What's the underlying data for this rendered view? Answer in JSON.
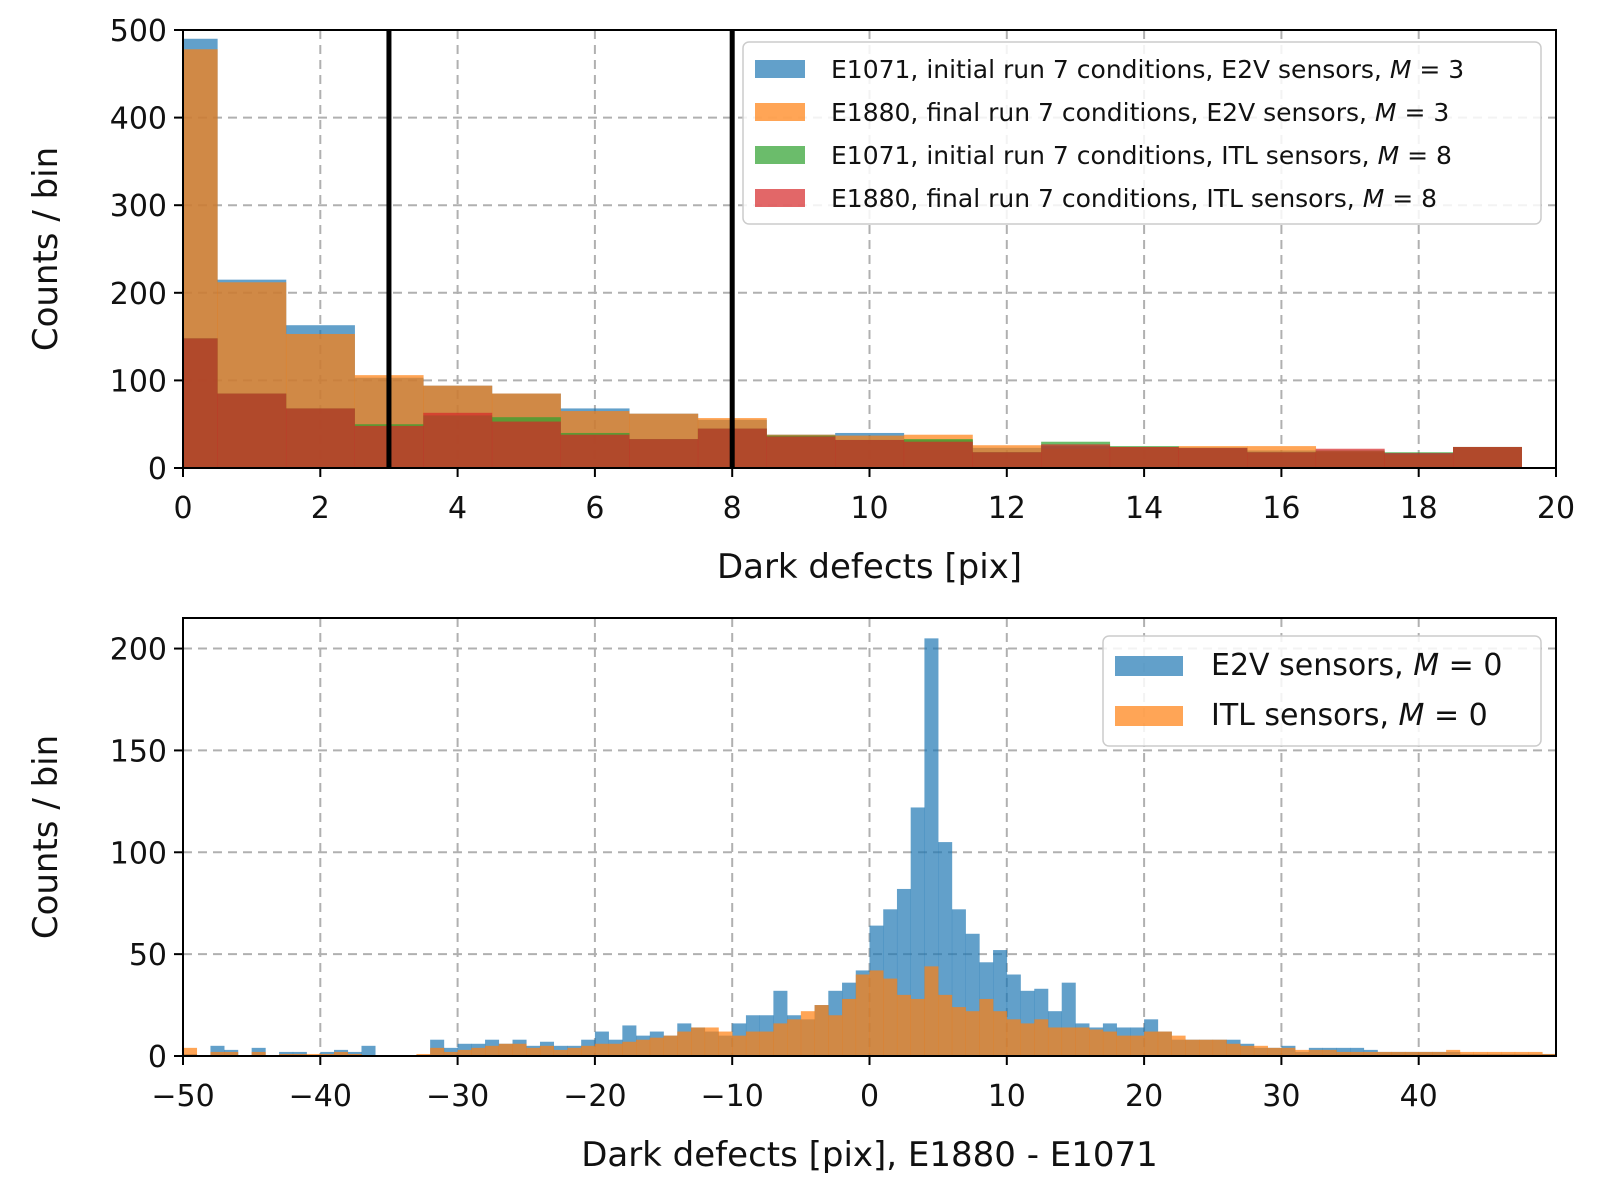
{
  "chart_data": [
    {
      "type": "histogram",
      "xlabel": "Dark defects [pix]",
      "ylabel": "Counts / bin",
      "xlim": [
        0,
        20
      ],
      "ylim": [
        0,
        500
      ],
      "xticks": [
        "0",
        "2",
        "4",
        "6",
        "8",
        "10",
        "12",
        "14",
        "16",
        "18",
        "20"
      ],
      "yticks": [
        "0",
        "100",
        "200",
        "300",
        "400",
        "500"
      ],
      "xtick_values": [
        0,
        2,
        4,
        6,
        8,
        10,
        12,
        14,
        16,
        18,
        20
      ],
      "ytick_values": [
        0,
        100,
        200,
        300,
        400,
        500
      ],
      "grid": true,
      "legend_position": "top-right",
      "bin_width": 1,
      "bin_centers": [
        0,
        1,
        2,
        3,
        4,
        5,
        6,
        7,
        8,
        9,
        10,
        11,
        12,
        13,
        14,
        15,
        16,
        17,
        18,
        19
      ],
      "vertical_lines": [
        3,
        8
      ],
      "series": [
        {
          "name": "E1071, initial run 7 conditions, E2V sensors, $M = 3$",
          "label_main": "E1071, initial run 7 conditions, E2V sensors, ",
          "label_math": "M",
          "label_eq": " = 3",
          "color": "#1f77b4",
          "values": [
            490,
            215,
            163,
            103,
            94,
            85,
            68,
            62,
            55,
            38,
            40,
            32,
            23,
            25,
            23,
            22,
            20,
            18,
            17,
            24
          ]
        },
        {
          "name": "E1880, final run 7 conditions, E2V sensors, $M = 3$",
          "label_main": "E1880, final run 7 conditions, E2V sensors, ",
          "label_math": "M",
          "label_eq": " = 3",
          "color": "#ff7f0e",
          "values": [
            478,
            212,
            153,
            106,
            94,
            85,
            65,
            62,
            57,
            38,
            37,
            38,
            26,
            22,
            24,
            25,
            25,
            19,
            15,
            24
          ]
        },
        {
          "name": "E1071, initial run 7 conditions, ITL sensors, $M = 8$",
          "label_main": "E1071, initial run 7 conditions, ITL sensors, ",
          "label_math": "M",
          "label_eq": " = 8",
          "color": "#2ca02c",
          "values": [
            148,
            85,
            68,
            50,
            60,
            58,
            40,
            33,
            45,
            37,
            32,
            33,
            18,
            30,
            25,
            23,
            18,
            20,
            18,
            24
          ]
        },
        {
          "name": "E1880, final run 7 conditions, ITL sensors, $M = 8$",
          "label_main": "E1880, final run 7 conditions, ITL sensors, ",
          "label_math": "M",
          "label_eq": " = 8",
          "color": "#d62728",
          "values": [
            148,
            85,
            68,
            48,
            63,
            53,
            38,
            33,
            45,
            36,
            32,
            30,
            18,
            27,
            24,
            23,
            18,
            22,
            17,
            24
          ]
        }
      ]
    },
    {
      "type": "histogram",
      "xlabel": "Dark defects [pix], E1880 - E1071",
      "ylabel": "Counts / bin",
      "xlim": [
        -50,
        50
      ],
      "ylim": [
        0,
        215
      ],
      "xticks": [
        "−50",
        "−40",
        "−30",
        "−20",
        "−10",
        "0",
        "10",
        "20",
        "30",
        "40"
      ],
      "yticks": [
        "0",
        "50",
        "100",
        "150",
        "200"
      ],
      "xtick_values": [
        -50,
        -40,
        -30,
        -20,
        -10,
        0,
        10,
        20,
        30,
        40
      ],
      "ytick_values": [
        0,
        50,
        100,
        150,
        200
      ],
      "grid": true,
      "legend_position": "top-right",
      "bin_width": 1,
      "bin_start": -50,
      "series": [
        {
          "name": "E2V sensors, $M = 0$",
          "label_main": "E2V sensors, ",
          "label_math": "M",
          "label_eq": " = 0",
          "color": "#1f77b4",
          "values": [
            1,
            0,
            5,
            3,
            0,
            4,
            0,
            2,
            2,
            0,
            2,
            3,
            2,
            5,
            0,
            0,
            0,
            0,
            8,
            4,
            6,
            6,
            8,
            6,
            8,
            5,
            7,
            5,
            5,
            8,
            12,
            8,
            15,
            10,
            12,
            10,
            16,
            14,
            12,
            10,
            16,
            20,
            20,
            32,
            20,
            18,
            25,
            32,
            36,
            42,
            64,
            72,
            82,
            122,
            205,
            105,
            72,
            60,
            46,
            52,
            40,
            32,
            33,
            22,
            36,
            16,
            14,
            16,
            14,
            14,
            18,
            12,
            8,
            8,
            8,
            8,
            8,
            6,
            4,
            4,
            5,
            2,
            4,
            4,
            4,
            4,
            3,
            2,
            2,
            2,
            2,
            2,
            2,
            1,
            1,
            1,
            1,
            1,
            1,
            1
          ]
        },
        {
          "name": "ITL sensors, $M = 0$",
          "label_main": "ITL sensors, ",
          "label_math": "M",
          "label_eq": " = 0",
          "color": "#ff7f0e",
          "values": [
            4,
            0,
            2,
            2,
            0,
            2,
            0,
            1,
            1,
            1,
            1,
            2,
            1,
            0,
            0,
            0,
            0,
            1,
            4,
            2,
            3,
            4,
            5,
            6,
            6,
            4,
            5,
            3,
            4,
            5,
            6,
            6,
            7,
            8,
            9,
            10,
            12,
            14,
            14,
            12,
            10,
            12,
            12,
            16,
            18,
            22,
            25,
            20,
            28,
            40,
            42,
            38,
            30,
            28,
            44,
            30,
            24,
            22,
            28,
            22,
            18,
            16,
            18,
            14,
            14,
            14,
            13,
            12,
            10,
            10,
            12,
            12,
            10,
            8,
            8,
            8,
            6,
            5,
            5,
            4,
            4,
            3,
            3,
            3,
            2,
            2,
            2,
            2,
            2,
            2,
            2,
            2,
            3,
            2,
            2,
            2,
            2,
            2,
            2,
            1
          ]
        }
      ]
    }
  ]
}
